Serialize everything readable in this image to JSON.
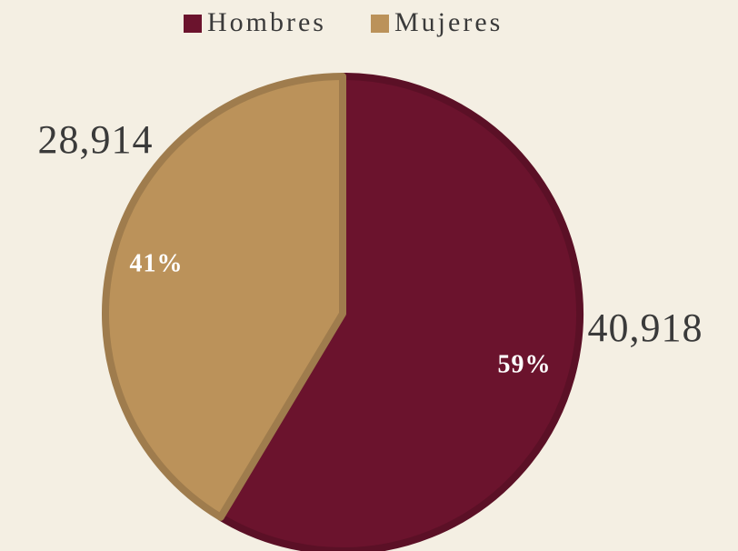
{
  "chart_data": {
    "type": "pie",
    "categories": [
      "Hombres",
      "Mujeres"
    ],
    "values": [
      40918,
      28914
    ],
    "value_labels": [
      "40,918",
      "28,914"
    ],
    "percentages": [
      59,
      41
    ],
    "percentage_labels": [
      "59%",
      "41%"
    ],
    "colors": [
      "#6b132d",
      "#bb925a"
    ],
    "legend": "top"
  }
}
